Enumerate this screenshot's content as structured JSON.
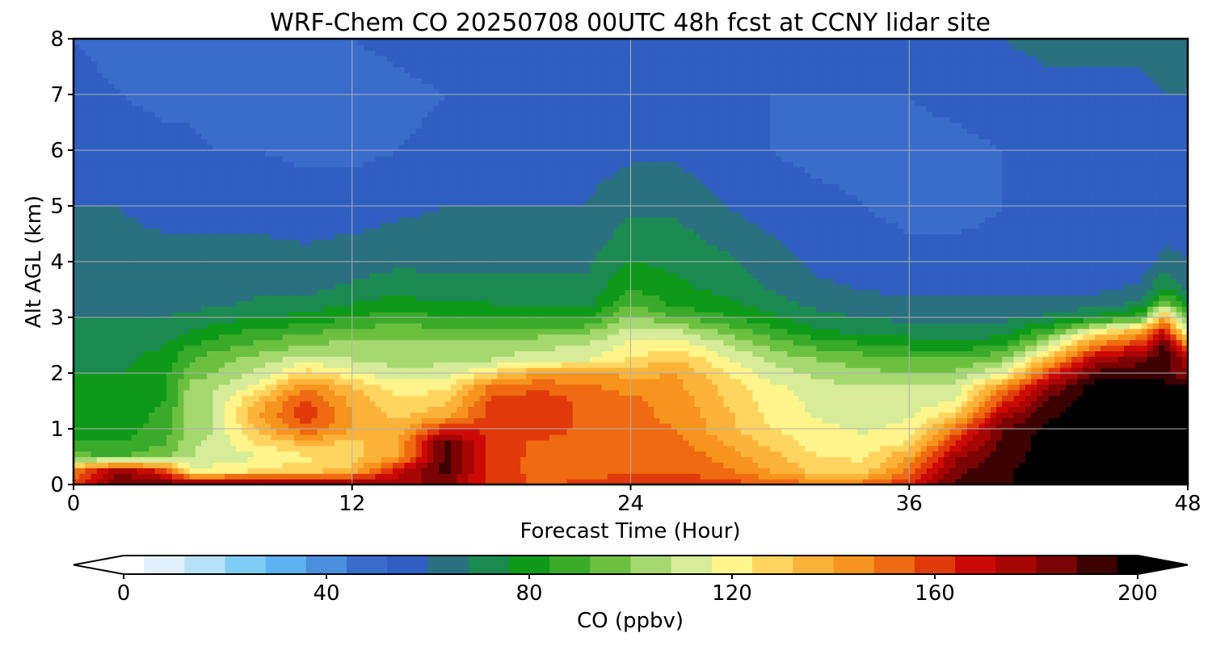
{
  "chart_data": {
    "type": "heatmap",
    "title": "WRF-Chem CO  20250708 00UTC 48h fcst at CCNY lidar site",
    "xlabel": "Forecast Time (Hour)",
    "ylabel": "Alt AGL (km)",
    "xlim": [
      0,
      48
    ],
    "ylim": [
      0,
      8
    ],
    "xticks": [
      0,
      12,
      24,
      36,
      48
    ],
    "yticks": [
      0,
      1,
      2,
      3,
      4,
      5,
      6,
      7,
      8
    ],
    "grid": true,
    "colorbar": {
      "label": "CO  (ppbv)",
      "range": [
        0,
        200
      ],
      "ticks": [
        0,
        40,
        80,
        120,
        160,
        200
      ],
      "extend": "both",
      "colors": [
        "#ffffff",
        "#e2f0fb",
        "#b8e0f8",
        "#80cdf5",
        "#5cb2ee",
        "#4a8fdd",
        "#3a6ccc",
        "#2f5fc0",
        "#2a7080",
        "#1a8a50",
        "#0e9a18",
        "#3aaa2a",
        "#6cc040",
        "#a6d870",
        "#d6ec98",
        "#fff58a",
        "#ffd560",
        "#fdb33a",
        "#f7941d",
        "#ef6a10",
        "#e03a0a",
        "#cc0a05",
        "#a80505",
        "#7a0303",
        "#3c0202",
        "#000000"
      ]
    },
    "time_hours": [
      0,
      2,
      4,
      5,
      6,
      8,
      10,
      12,
      14,
      16,
      18,
      20,
      22,
      24,
      26,
      28,
      30,
      32,
      34,
      36,
      38,
      40,
      42,
      44,
      46,
      47,
      48
    ],
    "altitude_km": [
      0,
      0.25,
      0.5,
      0.75,
      1,
      1.25,
      1.5,
      1.75,
      2,
      2.25,
      2.5,
      2.75,
      3,
      3.25,
      3.5,
      4,
      5,
      6,
      7,
      8
    ],
    "co_ppbv": [
      [
        160,
        188,
        188,
        188,
        188,
        188,
        187,
        185,
        175,
        186,
        160,
        155,
        157,
        158,
        162,
        160,
        155,
        150,
        152,
        165,
        190,
        195,
        200,
        200,
        200,
        200,
        200
      ],
      [
        150,
        180,
        160,
        120,
        120,
        125,
        130,
        135,
        170,
        190,
        158,
        155,
        155,
        155,
        155,
        150,
        140,
        130,
        128,
        150,
        185,
        195,
        200,
        200,
        200,
        200,
        200
      ],
      [
        95,
        92,
        98,
        108,
        110,
        115,
        122,
        128,
        140,
        190,
        158,
        155,
        155,
        155,
        155,
        145,
        135,
        125,
        122,
        140,
        178,
        192,
        200,
        200,
        200,
        200,
        200
      ],
      [
        85,
        84,
        92,
        106,
        110,
        125,
        135,
        130,
        140,
        190,
        160,
        155,
        150,
        150,
        150,
        140,
        130,
        120,
        118,
        125,
        165,
        190,
        200,
        200,
        200,
        200,
        200
      ],
      [
        80,
        80,
        88,
        104,
        108,
        135,
        155,
        140,
        135,
        165,
        162,
        160,
        155,
        150,
        148,
        135,
        125,
        118,
        115,
        118,
        150,
        188,
        198,
        200,
        200,
        200,
        200
      ],
      [
        80,
        80,
        86,
        104,
        108,
        140,
        162,
        140,
        130,
        138,
        160,
        160,
        155,
        150,
        146,
        135,
        122,
        115,
        112,
        115,
        130,
        175,
        195,
        200,
        200,
        200,
        200
      ],
      [
        78,
        80,
        84,
        104,
        108,
        135,
        158,
        138,
        125,
        130,
        158,
        160,
        155,
        150,
        145,
        132,
        120,
        114,
        110,
        112,
        115,
        160,
        190,
        200,
        200,
        200,
        200
      ],
      [
        78,
        78,
        84,
        102,
        106,
        120,
        148,
        132,
        120,
        122,
        150,
        155,
        150,
        145,
        142,
        130,
        118,
        112,
        108,
        110,
        110,
        145,
        180,
        200,
        200,
        200,
        200
      ],
      [
        76,
        76,
        82,
        96,
        100,
        110,
        128,
        118,
        110,
        112,
        125,
        140,
        140,
        138,
        140,
        125,
        112,
        106,
        102,
        100,
        102,
        115,
        160,
        190,
        195,
        190,
        180
      ],
      [
        74,
        74,
        80,
        90,
        96,
        104,
        112,
        108,
        104,
        106,
        108,
        112,
        115,
        125,
        132,
        118,
        106,
        100,
        96,
        92,
        92,
        100,
        135,
        175,
        185,
        195,
        175
      ],
      [
        72,
        72,
        76,
        84,
        88,
        95,
        100,
        104,
        102,
        104,
        104,
        106,
        108,
        118,
        120,
        110,
        98,
        90,
        86,
        82,
        80,
        84,
        110,
        150,
        165,
        190,
        150
      ],
      [
        70,
        70,
        72,
        76,
        80,
        86,
        90,
        96,
        96,
        96,
        96,
        96,
        98,
        112,
        110,
        98,
        88,
        78,
        74,
        72,
        70,
        72,
        90,
        120,
        140,
        170,
        110
      ],
      [
        68,
        68,
        68,
        70,
        72,
        76,
        78,
        84,
        88,
        84,
        84,
        84,
        82,
        102,
        92,
        86,
        78,
        70,
        68,
        66,
        66,
        66,
        70,
        78,
        90,
        140,
        90
      ],
      [
        66,
        66,
        66,
        66,
        66,
        70,
        72,
        76,
        80,
        76,
        76,
        74,
        72,
        92,
        82,
        78,
        72,
        66,
        64,
        62,
        62,
        62,
        62,
        64,
        70,
        100,
        76
      ],
      [
        64,
        64,
        64,
        64,
        64,
        66,
        66,
        70,
        74,
        70,
        70,
        70,
        70,
        84,
        78,
        74,
        68,
        62,
        60,
        58,
        58,
        58,
        58,
        58,
        62,
        78,
        66
      ],
      [
        62,
        62,
        62,
        62,
        62,
        62,
        62,
        64,
        66,
        66,
        66,
        66,
        66,
        76,
        74,
        70,
        64,
        58,
        56,
        54,
        54,
        54,
        54,
        54,
        56,
        62,
        60
      ],
      [
        60,
        60,
        58,
        58,
        58,
        58,
        56,
        56,
        58,
        60,
        60,
        60,
        60,
        66,
        66,
        60,
        56,
        54,
        52,
        50,
        50,
        52,
        52,
        54,
        54,
        56,
        56
      ],
      [
        56,
        56,
        54,
        54,
        52,
        52,
        50,
        50,
        52,
        54,
        56,
        56,
        56,
        58,
        58,
        54,
        52,
        50,
        50,
        50,
        50,
        52,
        54,
        54,
        54,
        56,
        56
      ],
      [
        54,
        52,
        50,
        50,
        48,
        48,
        48,
        48,
        50,
        52,
        54,
        54,
        56,
        56,
        56,
        54,
        52,
        52,
        52,
        52,
        54,
        56,
        58,
        58,
        58,
        60,
        60
      ],
      [
        52,
        50,
        48,
        48,
        48,
        48,
        50,
        52,
        54,
        56,
        58,
        58,
        58,
        58,
        56,
        54,
        54,
        56,
        56,
        56,
        58,
        60,
        62,
        62,
        62,
        64,
        64
      ]
    ]
  }
}
